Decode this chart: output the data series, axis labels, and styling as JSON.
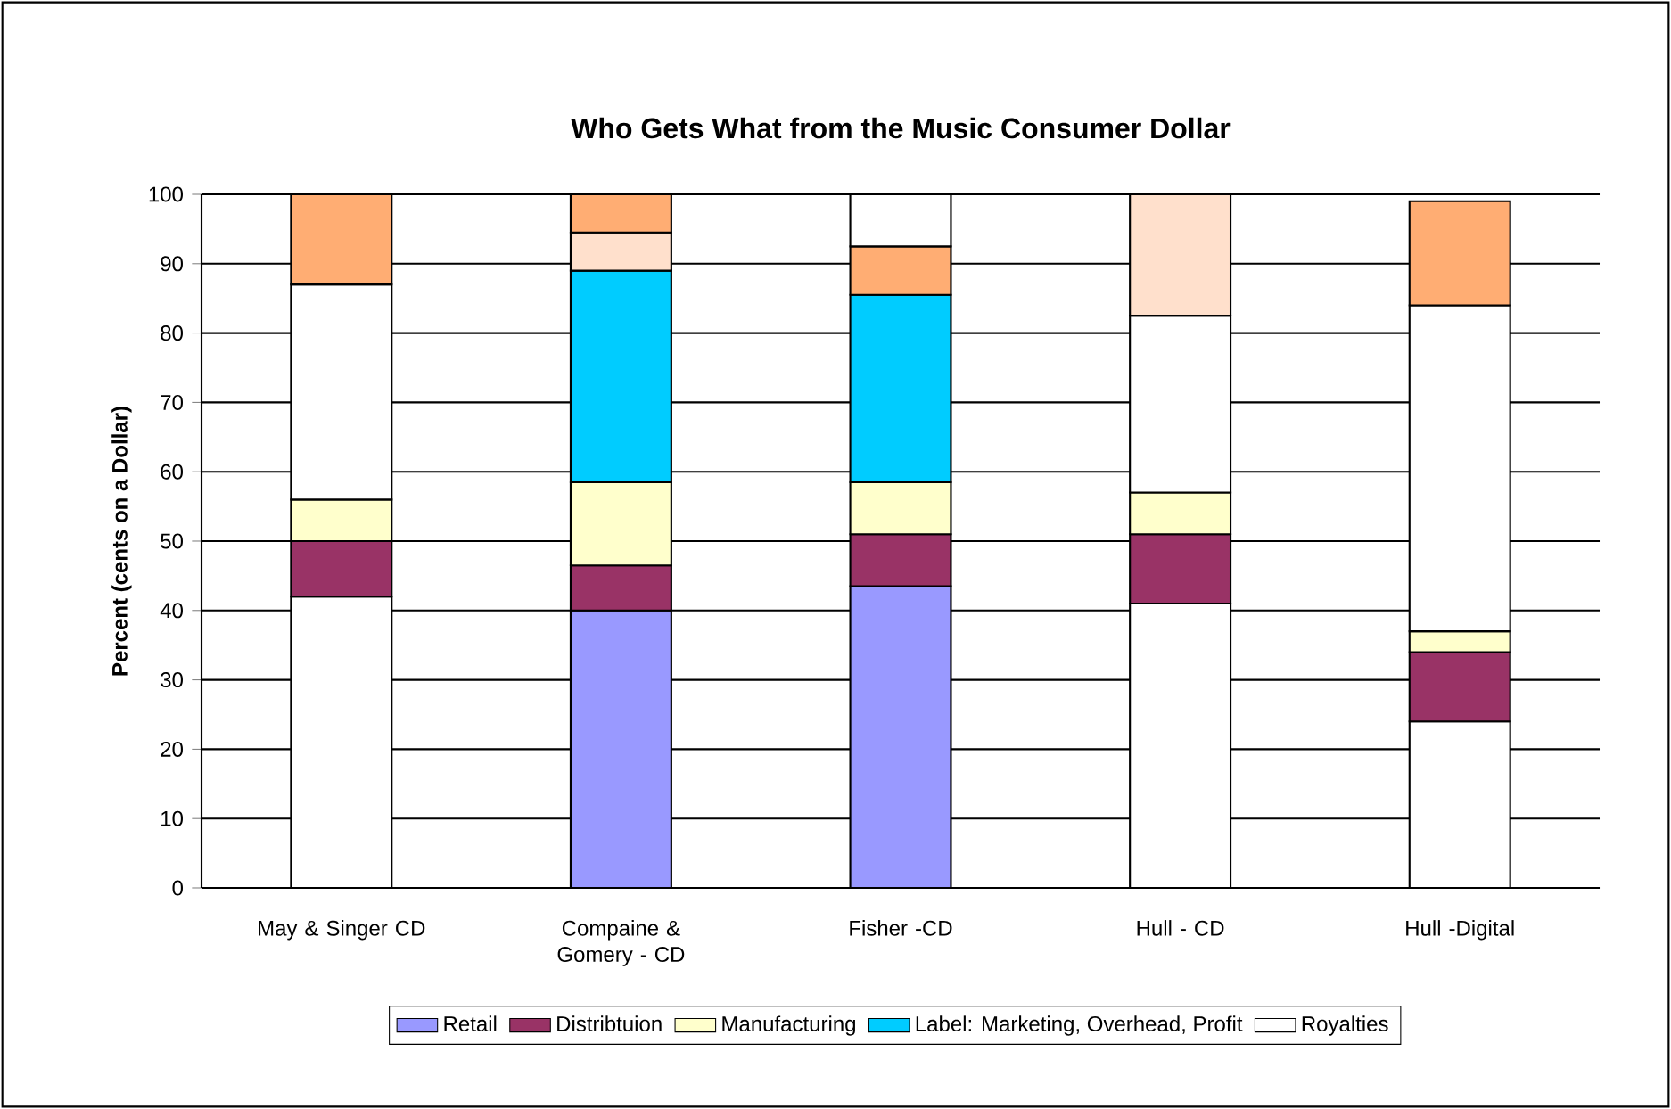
{
  "chart_data": {
    "type": "bar",
    "stacked": true,
    "title": "Who Gets What from the Music Consumer Dollar",
    "ylabel": "Percent (cents on a Dollar)",
    "categories": [
      "May & Singer CD",
      "Compaine & Gomery - CD",
      "Fisher -CD",
      "Hull - CD",
      "Hull -Digital"
    ],
    "ylim": [
      0,
      100
    ],
    "yticks": [
      0,
      10,
      20,
      30,
      40,
      50,
      60,
      70,
      80,
      90,
      100
    ],
    "grid": "y",
    "legend": "bottom",
    "series": [
      {
        "name": "Retail",
        "color": "#9999ff",
        "colors": [
          "#ffffff",
          "#9999ff",
          "#9999ff",
          "#ffffff",
          "#ffffff"
        ],
        "values": [
          42,
          40,
          43.5,
          41,
          24
        ]
      },
      {
        "name": "Distribtuion",
        "color": "#993366",
        "values": [
          8,
          6.5,
          7.5,
          10,
          10
        ]
      },
      {
        "name": "Manufacturing",
        "color": "#ffffcc",
        "values": [
          6,
          12,
          7.5,
          6,
          3
        ]
      },
      {
        "name": "Label: Marketing, Overhead, Profit",
        "color": "#00ccff",
        "colors": [
          "#ffffff",
          "#00ccff",
          "#00ccff",
          "#ffffff",
          "#ffffff"
        ],
        "values": [
          31,
          30.5,
          27,
          25.5,
          47
        ]
      },
      {
        "name": "Royalties",
        "color": "#ffffff",
        "colors": [
          "#ffad73",
          "#ffe0cc",
          "#ffad73",
          "#ffe0cc",
          "#ffad73"
        ],
        "values": [
          13,
          5.5,
          7,
          17.5,
          15
        ]
      },
      {
        "color": "#ffad73",
        "colors": [
          null,
          "#ffad73",
          "#ffffff",
          null,
          null
        ],
        "values": [
          null,
          5.5,
          7.5,
          null,
          null
        ]
      }
    ]
  }
}
